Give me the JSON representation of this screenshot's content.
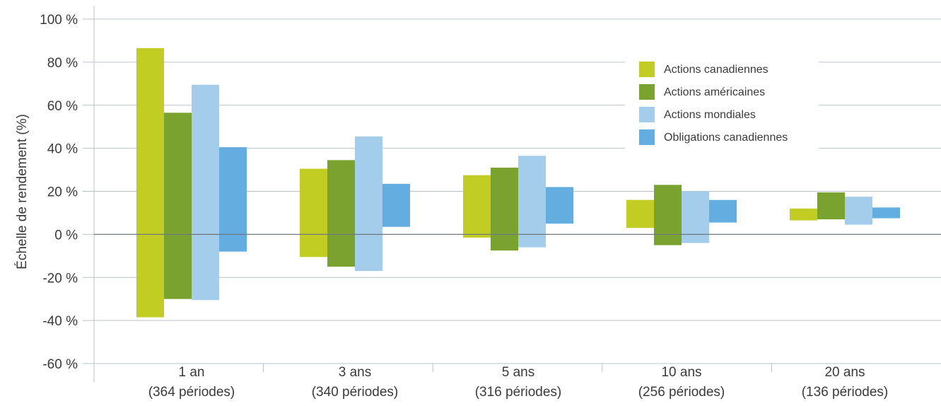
{
  "chart_data": {
    "type": "bar",
    "subtype": "floating-range",
    "ylabel": "Échelle de rendement (%)",
    "ylim": [
      -60,
      100
    ],
    "yticks": [
      -60,
      -40,
      -20,
      0,
      20,
      40,
      60,
      80,
      100
    ],
    "ytick_labels": [
      "-60 %",
      "-40 %",
      "-20 %",
      "0 %",
      "20 %",
      "40 %",
      "60 %",
      "80 %",
      "100 %"
    ],
    "grid": true,
    "legend_position": "top-right",
    "categories": [
      {
        "line1": "1 an",
        "line2": "(364 périodes)"
      },
      {
        "line1": "3 ans",
        "line2": "(340 périodes)"
      },
      {
        "line1": "5 ans",
        "line2": "(316 périodes)"
      },
      {
        "line1": "10 ans",
        "line2": "(256 périodes)"
      },
      {
        "line1": "20 ans",
        "line2": "(136 périodes)"
      }
    ],
    "series": [
      {
        "name": "Actions canadiennes",
        "color": "#c2cd23",
        "low": [
          -38.5,
          -10.5,
          -1.5,
          3.0,
          6.5
        ],
        "high": [
          86.5,
          30.5,
          27.5,
          16.0,
          12.0
        ]
      },
      {
        "name": "Actions américaines",
        "color": "#7aa22f",
        "low": [
          -30.0,
          -15.0,
          -7.5,
          -5.0,
          7.0
        ],
        "high": [
          56.5,
          34.5,
          31.0,
          23.0,
          19.5
        ]
      },
      {
        "name": "Actions mondiales",
        "color": "#a3cdeb",
        "low": [
          -30.5,
          -17.0,
          -6.0,
          -4.0,
          4.5
        ],
        "high": [
          69.5,
          45.5,
          36.5,
          20.0,
          17.5
        ]
      },
      {
        "name": "Obligations canadiennes",
        "color": "#64ade0",
        "low": [
          -8.0,
          3.5,
          5.0,
          5.5,
          7.5
        ],
        "high": [
          40.5,
          23.5,
          22.0,
          16.0,
          12.5
        ]
      }
    ]
  }
}
